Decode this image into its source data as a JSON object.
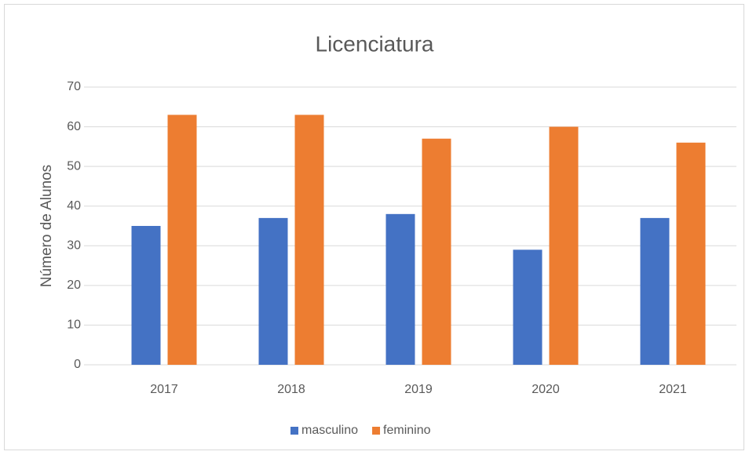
{
  "chart_data": {
    "type": "bar",
    "title": "Licenciatura",
    "y_label": "Número de Alunos",
    "categories": [
      "2017",
      "2018",
      "2019",
      "2020",
      "2021"
    ],
    "series": [
      {
        "name": "masculino",
        "color": "#4472c4",
        "values": [
          35,
          37,
          38,
          29,
          37
        ]
      },
      {
        "name": "feminino",
        "color": "#ed7d31",
        "values": [
          63,
          63,
          57,
          60,
          56
        ]
      }
    ],
    "ylim": [
      0,
      70
    ],
    "yticks": [
      0,
      10,
      20,
      30,
      40,
      50,
      60,
      70
    ],
    "grid": true,
    "legend": "bottom"
  }
}
